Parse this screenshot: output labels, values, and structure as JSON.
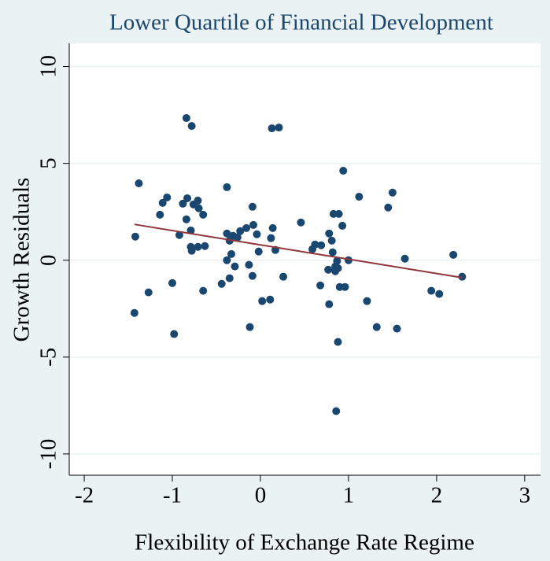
{
  "chart_data": {
    "type": "scatter",
    "title": "Lower Quartile of Financial Development",
    "x_label": "Flexibility of Exchange Rate Regime",
    "y_label": "Growth Residuals",
    "color": "#1a476f",
    "x": [
      -0.84,
      -0.78,
      0.13,
      0.21,
      0.94,
      -1.38,
      -0.38,
      1.5,
      -1.06,
      1.12,
      -0.83,
      -0.71,
      -1.11,
      -0.88,
      -0.76,
      -0.09,
      -0.7,
      1.45,
      -1.14,
      -0.65,
      0.83,
      0.89,
      -0.84,
      0.46,
      0.93,
      -0.08,
      -0.16,
      0.14,
      -0.79,
      -0.23,
      -0.38,
      -0.92,
      -0.04,
      -0.31,
      0.78,
      -1.42,
      -0.26,
      0.12,
      -0.35,
      0.81,
      0.62,
      0.69,
      -0.63,
      -0.71,
      -0.79,
      -0.78,
      0.59,
      0.17,
      -0.02,
      0.82,
      -0.38,
      1.0,
      0.87,
      1.64,
      2.19,
      -0.33,
      -0.29,
      -0.13,
      0.85,
      0.88,
      0.77,
      0.85,
      2.29,
      0.26,
      -0.09,
      -0.35,
      -1.0,
      -0.44,
      0.68,
      0.9,
      0.96,
      -0.65,
      -1.27,
      1.94,
      2.03,
      1.21,
      0.11,
      0.02,
      0.78,
      -1.43,
      -0.12,
      1.32,
      1.55,
      -0.98,
      0.88,
      0.86
    ],
    "values": [
      7.34,
      6.93,
      6.81,
      6.85,
      4.62,
      3.97,
      3.77,
      3.49,
      3.24,
      3.28,
      3.2,
      3.08,
      2.96,
      2.92,
      2.88,
      2.76,
      2.68,
      2.72,
      2.35,
      2.35,
      2.39,
      2.39,
      2.11,
      1.95,
      1.78,
      1.82,
      1.66,
      1.66,
      1.54,
      1.5,
      1.38,
      1.3,
      1.34,
      1.26,
      1.38,
      1.22,
      1.18,
      1.14,
      1.01,
      1.01,
      0.81,
      0.77,
      0.73,
      0.69,
      0.69,
      0.49,
      0.57,
      0.53,
      0.45,
      0.41,
      0.0,
      0.0,
      -0.04,
      0.08,
      0.28,
      0.32,
      -0.32,
      -0.24,
      -0.32,
      -0.41,
      -0.49,
      -0.57,
      -0.85,
      -0.85,
      -0.81,
      -0.93,
      -1.18,
      -1.22,
      -1.3,
      -1.38,
      -1.38,
      -1.58,
      -1.66,
      -1.58,
      -1.74,
      -2.11,
      -2.03,
      -2.11,
      -2.27,
      -2.72,
      -3.45,
      -3.45,
      -3.53,
      -3.81,
      -4.22,
      -7.79
    ],
    "fit": {
      "x": [
        -1.43,
        2.29
      ],
      "values": [
        1.85,
        -0.9
      ],
      "color": "#90353b"
    },
    "xlim": [
      -2.17,
      3.18
    ],
    "xticks": [
      -2,
      -1,
      0,
      1,
      2,
      3
    ],
    "ylim": [
      -11.1,
      11.2
    ],
    "yticks": [
      -10,
      -5,
      0,
      5,
      10
    ],
    "grid": true
  }
}
